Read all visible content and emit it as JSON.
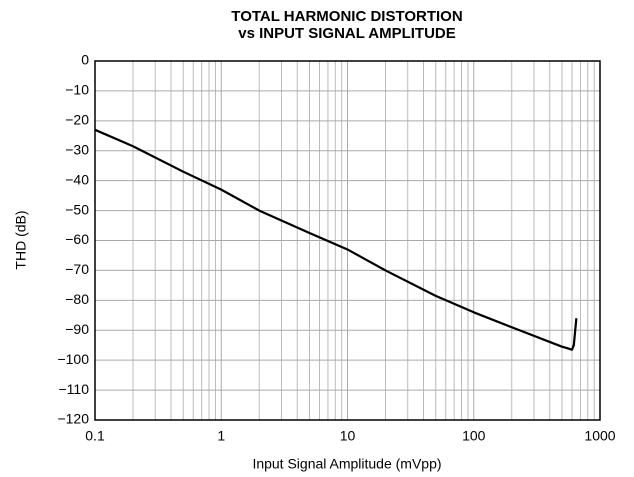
{
  "chart_data": {
    "type": "line",
    "title": "TOTAL HARMONIC DISTORTION",
    "subtitle": "vs INPUT SIGNAL AMPLITUDE",
    "xlabel": "Input Signal Amplitude (mVpp)",
    "ylabel": "THD (dB)",
    "x": [
      0.1,
      0.2,
      0.5,
      1,
      2,
      5,
      10,
      20,
      50,
      100,
      200,
      500,
      550,
      600,
      620,
      650
    ],
    "values": [
      -23,
      -28.5,
      -37,
      -43,
      -50,
      -57.5,
      -63,
      -70,
      -78.5,
      -84,
      -89,
      -95.5,
      -96,
      -96.5,
      -95,
      -86
    ],
    "color": "#000000",
    "xscale": "log",
    "xlim": [
      0.1,
      1000
    ],
    "xticks": [
      0.1,
      1,
      10,
      100,
      1000
    ],
    "ylim": [
      -120,
      0
    ],
    "yticks": [
      0,
      {
        "value": -10,
        "label": "−10"
      },
      {
        "value": -20,
        "label": "−20"
      },
      {
        "value": -30,
        "label": "−30"
      },
      {
        "value": -40,
        "label": "−40"
      },
      {
        "value": -50,
        "label": "−50"
      },
      {
        "value": -60,
        "label": "−60"
      },
      {
        "value": -70,
        "label": "−70"
      },
      {
        "value": -80,
        "label": "−80"
      },
      {
        "value": -90,
        "label": "−90"
      },
      {
        "value": -100,
        "label": "−100"
      },
      {
        "value": -110,
        "label": "−110"
      },
      {
        "value": -120,
        "label": "−120"
      }
    ],
    "grid": true,
    "minor_grid": true
  }
}
